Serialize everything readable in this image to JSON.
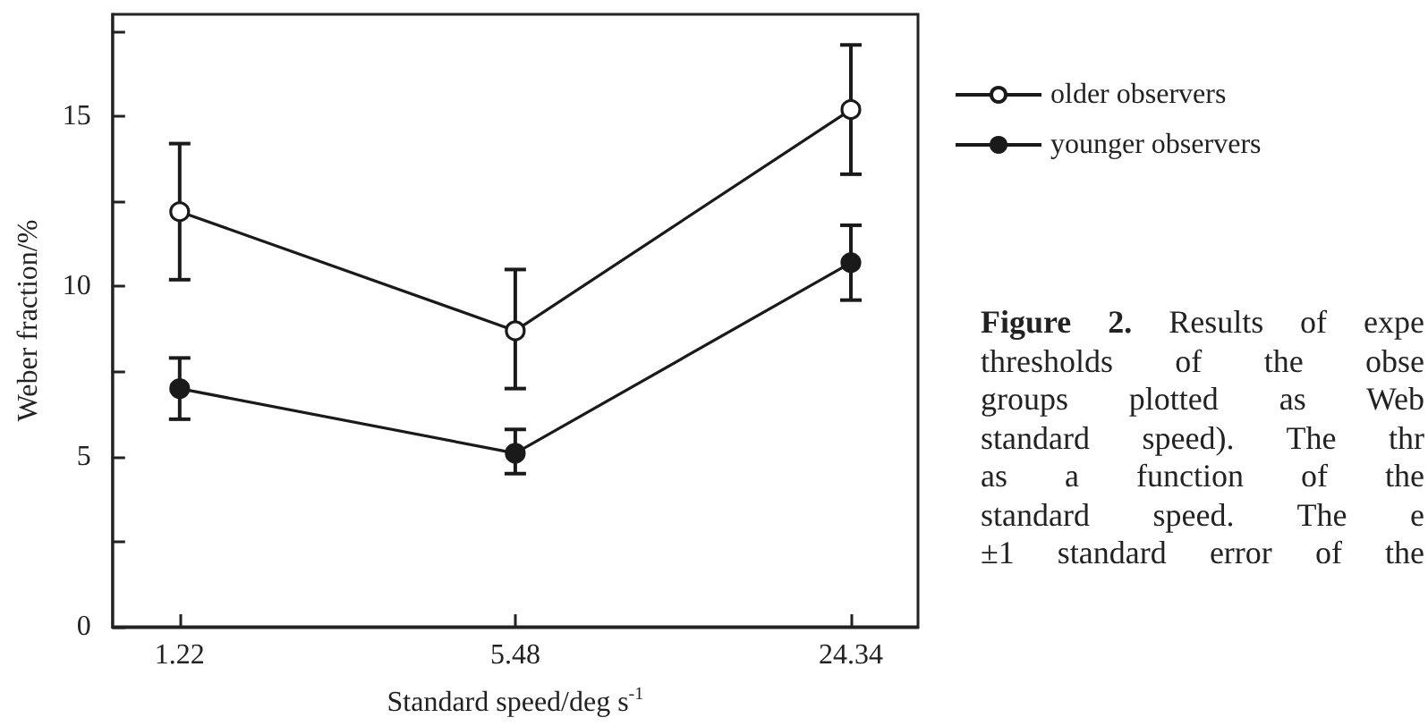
{
  "chart_data": {
    "type": "line",
    "xlabel": "Standard speed/deg s$^{-1}$",
    "ylabel": "Weber fraction/%",
    "categories": [
      "1.22",
      "5.48",
      "24.34"
    ],
    "series": [
      {
        "name": "older observers",
        "color": "#1a1a1a",
        "values": [
          12.2,
          8.7,
          15.2
        ],
        "errors": [
          2.0,
          [
            7.0,
            10.5
          ],
          [
            13.3,
            17.1
          ]
        ]
      },
      {
        "name": "younger observers",
        "color": "#1a1a1a",
        "values": [
          7.0,
          5.1,
          10.7
        ],
        "errors": [
          0.9,
          [
            4.5,
            5.8
          ],
          [
            9.6,
            11.8
          ]
        ]
      }
    ],
    "ylim": [
      0,
      18
    ],
    "yticks": [
      0,
      {
        "value": 2.5,
        "label": null
      },
      5,
      {
        "value": 7.5,
        "label": null
      },
      10,
      {
        "value": 12.5,
        "label": null
      },
      15,
      {
        "value": 17.5,
        "label": null
      }
    ],
    "marker": "circle",
    "line_style": "solid",
    "legend": "top right",
    "annotations": [
      "Figure 2. Results of expe\nthresholds of the obse\ngroups plotted as Web\nstandard speed). The thr\nas a function of the\nstandard speed. The e\n±1 standard error of the"
    ]
  }
}
